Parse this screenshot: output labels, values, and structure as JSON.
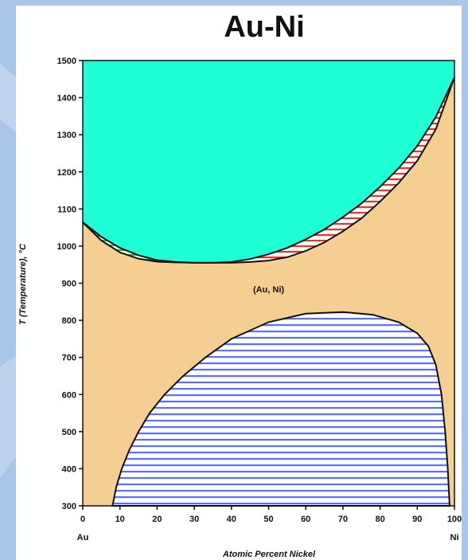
{
  "colors": {
    "slide_background": "#a9c6e8",
    "liquid": "#1effd6",
    "solid_solution": "#f4cf91",
    "miscibility_gap_hatch": "#5a70ff",
    "liquidus_solidus_right_hatch": "#e8332c",
    "liquidus_solidus_left_hatch": "#3ea93e",
    "boundary_line": "#111111"
  },
  "chart_data": {
    "type": "phase-diagram",
    "title": "Au-Ni",
    "xlabel": "Atomic Percent Nickel",
    "ylabel": "T (Temperature), °C",
    "xlim": [
      0,
      100
    ],
    "ylim": [
      300,
      1500
    ],
    "x_ticks": [
      0,
      10,
      20,
      30,
      40,
      50,
      60,
      70,
      80,
      90,
      100
    ],
    "y_ticks": [
      300,
      400,
      500,
      600,
      700,
      800,
      900,
      1000,
      1100,
      1200,
      1300,
      1400,
      1500
    ],
    "element_labels": {
      "left": "Au",
      "right": "Ni"
    },
    "phase_labels": [
      {
        "text": "(Au, Ni)",
        "x": 50,
        "y": 875
      }
    ],
    "liquidus": [
      [
        0,
        1064
      ],
      [
        5,
        1025
      ],
      [
        10,
        995
      ],
      [
        15,
        975
      ],
      [
        20,
        962
      ],
      [
        25,
        957
      ],
      [
        30,
        955
      ],
      [
        35,
        955
      ],
      [
        40,
        957
      ],
      [
        45,
        965
      ],
      [
        50,
        978
      ],
      [
        55,
        995
      ],
      [
        60,
        1018
      ],
      [
        65,
        1045
      ],
      [
        70,
        1078
      ],
      [
        75,
        1115
      ],
      [
        80,
        1160
      ],
      [
        85,
        1210
      ],
      [
        90,
        1270
      ],
      [
        95,
        1348
      ],
      [
        100,
        1455
      ]
    ],
    "solidus": [
      [
        0,
        1064
      ],
      [
        5,
        1015
      ],
      [
        10,
        983
      ],
      [
        15,
        966
      ],
      [
        20,
        958
      ],
      [
        25,
        956
      ],
      [
        30,
        955
      ],
      [
        35,
        955
      ],
      [
        40,
        955
      ],
      [
        45,
        957
      ],
      [
        50,
        961
      ],
      [
        55,
        970
      ],
      [
        60,
        987
      ],
      [
        65,
        1010
      ],
      [
        70,
        1040
      ],
      [
        75,
        1075
      ],
      [
        80,
        1120
      ],
      [
        85,
        1170
      ],
      [
        90,
        1230
      ],
      [
        95,
        1315
      ],
      [
        100,
        1455
      ]
    ],
    "miscibility_gap": [
      [
        8,
        300
      ],
      [
        9,
        350
      ],
      [
        10.5,
        400
      ],
      [
        12.5,
        450
      ],
      [
        15,
        500
      ],
      [
        18,
        550
      ],
      [
        22,
        600
      ],
      [
        27,
        650
      ],
      [
        33,
        700
      ],
      [
        40,
        750
      ],
      [
        50,
        795
      ],
      [
        60,
        818
      ],
      [
        70,
        822
      ],
      [
        78,
        815
      ],
      [
        85,
        795
      ],
      [
        90,
        765
      ],
      [
        93,
        730
      ],
      [
        95,
        680
      ],
      [
        96.5,
        600
      ],
      [
        97.5,
        500
      ],
      [
        98.2,
        400
      ],
      [
        98.7,
        300
      ]
    ],
    "grid": false,
    "legend": "none"
  }
}
